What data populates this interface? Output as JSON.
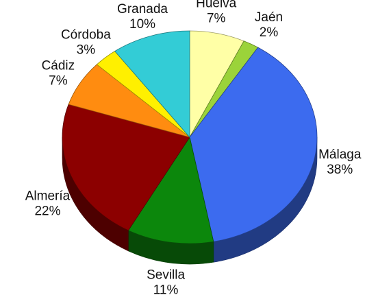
{
  "chart_data": {
    "type": "pie",
    "style": "3d-tilted",
    "labels": [
      "Huelva",
      "Jaén",
      "Málaga",
      "Sevilla",
      "Almería",
      "Cádiz",
      "Córdoba",
      "Granada"
    ],
    "values": [
      7,
      2,
      38,
      11,
      22,
      7,
      3,
      10
    ],
    "value_labels": [
      "7%",
      "2%",
      "38%",
      "11%",
      "22%",
      "7%",
      "3%",
      "10%"
    ],
    "colors": [
      "#FFFFA6",
      "#9BD33A",
      "#3C6BEF",
      "#0C870C",
      "#8C0000",
      "#FF8C10",
      "#FFF000",
      "#33CCD6"
    ],
    "legend": "none"
  }
}
